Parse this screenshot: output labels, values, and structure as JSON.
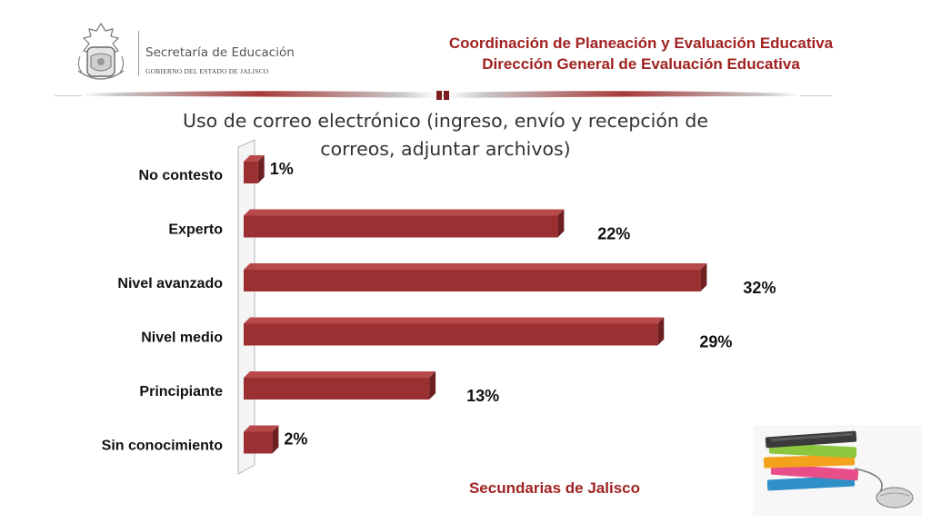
{
  "header": {
    "org_name": "Secretaría de Educación",
    "org_sub": "GOBIERNO DEL ESTADO DE JALISCO",
    "line1": "Coordinación de Planeación y Evaluación Educativa",
    "line2": "Dirección General de Evaluación Educativa"
  },
  "caption": "Secundarias de Jalisco",
  "colors": {
    "bar": "#9b3033",
    "bar_top": "#b8494b",
    "bar_side": "#6e1f22",
    "header": "#a02222"
  },
  "icons": {
    "logo": "jalisco-seal-icon",
    "decor": "books-and-mouse-icon"
  },
  "chart_data": {
    "type": "bar",
    "orientation": "horizontal",
    "title": "Uso de correo electrónico (ingreso, envío y recepción de correos, adjuntar archivos)",
    "categories": [
      "No contesto",
      "Experto",
      "Nivel avanzado",
      "Nivel medio",
      "Principiante",
      "Sin conocimiento"
    ],
    "values": [
      1,
      22,
      32,
      29,
      13,
      2
    ],
    "value_labels": [
      "1%",
      "22%",
      "32%",
      "29%",
      "13%",
      "2%"
    ],
    "xlim": [
      0,
      35
    ],
    "grid": false,
    "legend": "none"
  }
}
